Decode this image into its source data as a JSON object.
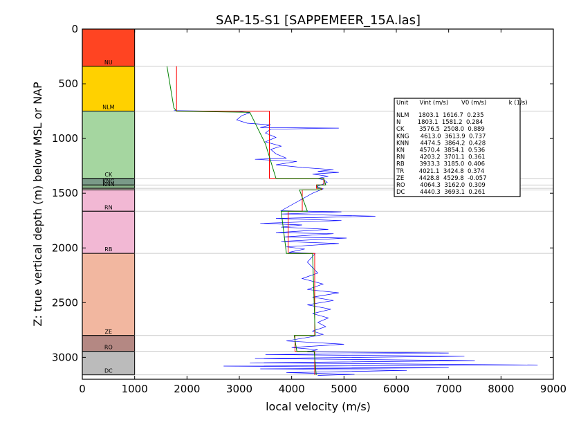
{
  "chart_data": {
    "type": "line",
    "title": "SAP-15-S1 [SAPPEMEER_15A.las]",
    "xlabel": "local velocity (m/s)",
    "ylabel": "Z: true vertical depth (m) below MSL or NAP",
    "xlim": [
      0,
      9000
    ],
    "ylim": [
      3200,
      0
    ],
    "x_ticks": [
      "0",
      "1000",
      "2000",
      "3000",
      "4000",
      "5000",
      "6000",
      "7000",
      "8000",
      "9000"
    ],
    "y_ticks": [
      "0",
      "500",
      "1000",
      "1500",
      "2000",
      "2500",
      "3000"
    ],
    "grid": false,
    "colors": {
      "log": "#0000ff",
      "interval": "#ff0000",
      "fit": "#008000",
      "boundary": "#cccccc"
    },
    "formations": [
      {
        "name": "NU",
        "top": 0,
        "base": 340,
        "color": "#ff4422",
        "label_visible": true
      },
      {
        "name": "NLM",
        "top": 340,
        "base": 750,
        "color": "#ffd100",
        "label_visible": true
      },
      {
        "name": "CK",
        "top": 750,
        "base": 1365,
        "color": "#a5d6a0",
        "label_visible": true
      },
      {
        "name": "KNG",
        "top": 1365,
        "base": 1425,
        "color": "#7a9a88",
        "label_visible": true
      },
      {
        "name": "KNN",
        "top": 1425,
        "base": 1455,
        "color": "#8ab48a",
        "label_visible": true
      },
      {
        "name": "",
        "top": 1455,
        "base": 1470,
        "color": "#bdb7ad",
        "label_visible": false
      },
      {
        "name": "RN",
        "top": 1470,
        "base": 1665,
        "color": "#f2b8d4",
        "label_visible": true
      },
      {
        "name": "RB",
        "top": 1665,
        "base": 2050,
        "color": "#f2b8d4",
        "label_visible": true
      },
      {
        "name": "ZE",
        "top": 2050,
        "base": 2800,
        "color": "#f2b7a0",
        "label_visible": true
      },
      {
        "name": "RO",
        "top": 2800,
        "base": 2945,
        "color": "#b48883",
        "label_visible": true
      },
      {
        "name": "DC",
        "top": 2945,
        "base": 3160,
        "color": "#bbbbbb",
        "label_visible": true
      }
    ],
    "interval_velocity_line": [
      [
        1800,
        340
      ],
      [
        1800,
        750
      ],
      [
        3575,
        750
      ],
      [
        3575,
        1365
      ],
      [
        4613,
        1365
      ],
      [
        4613,
        1425
      ],
      [
        4474,
        1425
      ],
      [
        4474,
        1455
      ],
      [
        4570,
        1455
      ],
      [
        4570,
        1470
      ],
      [
        4203,
        1470
      ],
      [
        4203,
        1665
      ],
      [
        3933,
        1665
      ],
      [
        3933,
        2050
      ],
      [
        4440,
        2050
      ],
      [
        4440,
        2800
      ],
      [
        4064,
        2800
      ],
      [
        4064,
        2945
      ],
      [
        4440,
        2945
      ],
      [
        4440,
        3160
      ]
    ],
    "fit_line": [
      [
        1617,
        340
      ],
      [
        1750,
        720
      ],
      [
        1800,
        750
      ],
      [
        3200,
        760
      ],
      [
        3500,
        1050
      ],
      [
        3700,
        1365
      ],
      [
        4613,
        1365
      ],
      [
        4650,
        1425
      ],
      [
        4480,
        1425
      ],
      [
        4500,
        1455
      ],
      [
        4560,
        1455
      ],
      [
        4560,
        1470
      ],
      [
        4150,
        1470
      ],
      [
        4300,
        1665
      ],
      [
        3800,
        1665
      ],
      [
        3900,
        2050
      ],
      [
        4400,
        2050
      ],
      [
        4450,
        2800
      ],
      [
        4050,
        2800
      ],
      [
        4100,
        2945
      ],
      [
        4430,
        2945
      ],
      [
        4470,
        3160
      ]
    ],
    "velocity_log": [
      [
        1750,
        745
      ],
      [
        2300,
        748
      ],
      [
        3000,
        752
      ],
      [
        3200,
        765
      ],
      [
        3050,
        790
      ],
      [
        2950,
        830
      ],
      [
        3150,
        860
      ],
      [
        3600,
        875
      ],
      [
        3400,
        900
      ],
      [
        4900,
        905
      ],
      [
        3600,
        915
      ],
      [
        3500,
        950
      ],
      [
        3700,
        990
      ],
      [
        3500,
        1030
      ],
      [
        3800,
        1070
      ],
      [
        3600,
        1100
      ],
      [
        3700,
        1140
      ],
      [
        3900,
        1180
      ],
      [
        3300,
        1190
      ],
      [
        4100,
        1210
      ],
      [
        3700,
        1240
      ],
      [
        4200,
        1265
      ],
      [
        4800,
        1285
      ],
      [
        4500,
        1300
      ],
      [
        4900,
        1310
      ],
      [
        4400,
        1325
      ],
      [
        4700,
        1345
      ],
      [
        4500,
        1365
      ],
      [
        4620,
        1380
      ],
      [
        4680,
        1400
      ],
      [
        4480,
        1440
      ],
      [
        4600,
        1460
      ],
      [
        4400,
        1500
      ],
      [
        3800,
        1660
      ],
      [
        4950,
        1670
      ],
      [
        3800,
        1690
      ],
      [
        5600,
        1710
      ],
      [
        3700,
        1730
      ],
      [
        4950,
        1750
      ],
      [
        3400,
        1775
      ],
      [
        4200,
        1790
      ],
      [
        3800,
        1810
      ],
      [
        4700,
        1830
      ],
      [
        3700,
        1860
      ],
      [
        4800,
        1870
      ],
      [
        3850,
        1900
      ],
      [
        5050,
        1910
      ],
      [
        3800,
        1940
      ],
      [
        4900,
        1960
      ],
      [
        3900,
        1990
      ],
      [
        4250,
        2010
      ],
      [
        3950,
        2040
      ],
      [
        4450,
        2050
      ],
      [
        4300,
        2130
      ],
      [
        4500,
        2230
      ],
      [
        4200,
        2280
      ],
      [
        4600,
        2330
      ],
      [
        4300,
        2380
      ],
      [
        4900,
        2410
      ],
      [
        4400,
        2450
      ],
      [
        4800,
        2480
      ],
      [
        4300,
        2520
      ],
      [
        4750,
        2560
      ],
      [
        4400,
        2600
      ],
      [
        4700,
        2640
      ],
      [
        4500,
        2680
      ],
      [
        4650,
        2720
      ],
      [
        4400,
        2760
      ],
      [
        4600,
        2790
      ],
      [
        4400,
        2810
      ],
      [
        3900,
        2850
      ],
      [
        5000,
        2880
      ],
      [
        4000,
        2910
      ],
      [
        4500,
        2930
      ],
      [
        4300,
        2950
      ],
      [
        7000,
        2960
      ],
      [
        3500,
        2975
      ],
      [
        7300,
        2990
      ],
      [
        3300,
        3010
      ],
      [
        7500,
        3030
      ],
      [
        3200,
        3050
      ],
      [
        8700,
        3070
      ],
      [
        2700,
        3080
      ],
      [
        7000,
        3095
      ],
      [
        3400,
        3105
      ],
      [
        6200,
        3120
      ],
      [
        3900,
        3140
      ],
      [
        5200,
        3155
      ],
      [
        4500,
        3165
      ]
    ],
    "boundary_depths": [
      340,
      750,
      1365,
      1425,
      1455,
      1470,
      1665,
      2050,
      2800,
      2945,
      3160
    ],
    "legend": {
      "placement": "right",
      "header": "Unit      Vint (m/s)       V0 (m/s)            k (1/s)",
      "rows": [
        "NLM     1803.1  1616.7  0.235",
        "N         1803.1  1581.2  0.284",
        "CK        3576.5  2508.0  0.889",
        "KNG      4613.0  3613.9  0.737",
        "KNN      4474.5  3864.2  0.428",
        "KN        4570.4  3854.1  0.536",
        "RN        4203.2  3701.1  0.361",
        "RB        3933.3  3185.0  0.406",
        "TR        4021.1  3424.8  0.374",
        "ZE        4428.8  4529.8  -0.057",
        "RO        4064.3  3162.0  0.309",
        "DC        4440.3  3693.1  0.261"
      ]
    }
  }
}
